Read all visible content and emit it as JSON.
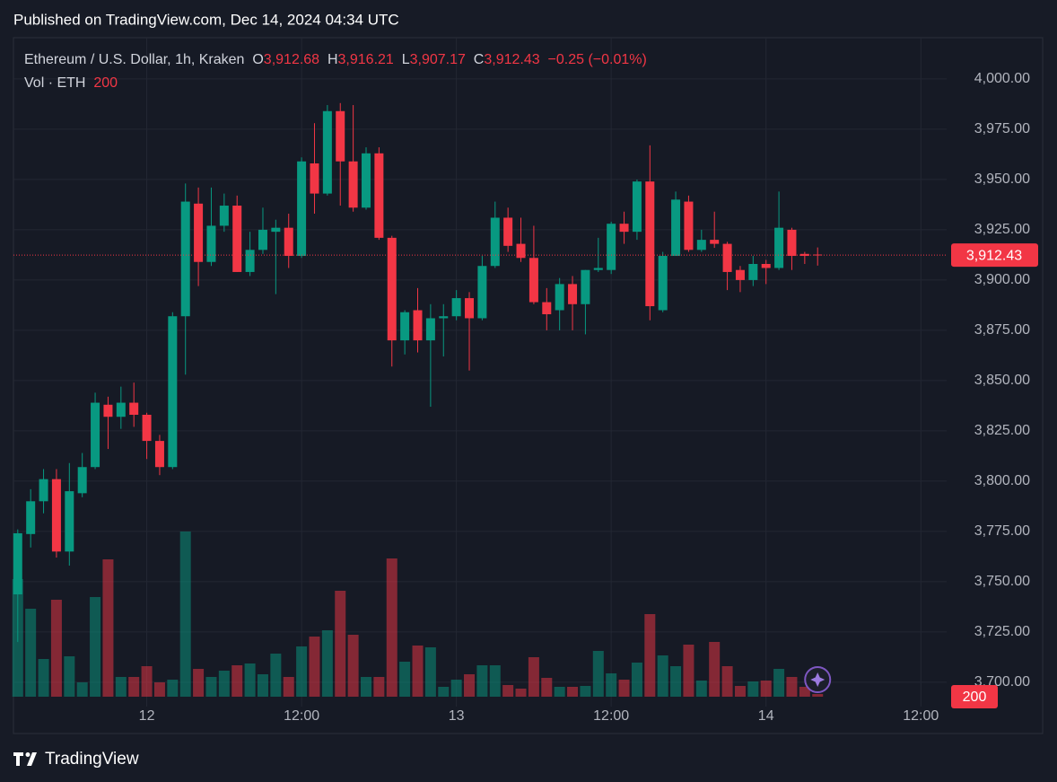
{
  "chart_data": {
    "type": "candlestick",
    "header": "Published on TradingView.com, Dec 14, 2024 04:34 UTC",
    "title": "Ethereum / U.S. Dollar, 1h, Kraken",
    "ohlc_legend": [
      {
        "key": "O",
        "label": "3,912.68"
      },
      {
        "key": "H",
        "label": "3,916.21"
      },
      {
        "key": "L",
        "label": "3,907.17"
      },
      {
        "key": "C",
        "label": "3,912.43"
      }
    ],
    "change_label": "−0.25 (−0.01%)",
    "volume_title": "Vol · ETH",
    "brand": "TradingView",
    "up_color": "#089981",
    "down_color": "#f23645",
    "grid": true,
    "x": [
      "2024-12-11T14:00",
      "2024-12-11T15:00",
      "2024-12-11T16:00",
      "2024-12-11T17:00",
      "2024-12-11T18:00",
      "2024-12-11T19:00",
      "2024-12-11T20:00",
      "2024-12-11T21:00",
      "2024-12-11T22:00",
      "2024-12-11T23:00",
      "2024-12-12T00:00",
      "2024-12-12T01:00",
      "2024-12-12T02:00",
      "2024-12-12T03:00",
      "2024-12-12T04:00",
      "2024-12-12T05:00",
      "2024-12-12T06:00",
      "2024-12-12T07:00",
      "2024-12-12T08:00",
      "2024-12-12T09:00",
      "2024-12-12T10:00",
      "2024-12-12T11:00",
      "2024-12-12T12:00",
      "2024-12-12T13:00",
      "2024-12-12T14:00",
      "2024-12-12T15:00",
      "2024-12-12T16:00",
      "2024-12-12T17:00",
      "2024-12-12T18:00",
      "2024-12-12T19:00",
      "2024-12-12T20:00",
      "2024-12-12T21:00",
      "2024-12-12T22:00",
      "2024-12-12T23:00",
      "2024-12-13T00:00",
      "2024-12-13T01:00",
      "2024-12-13T02:00",
      "2024-12-13T03:00",
      "2024-12-13T04:00",
      "2024-12-13T05:00",
      "2024-12-13T06:00",
      "2024-12-13T07:00",
      "2024-12-13T08:00",
      "2024-12-13T09:00",
      "2024-12-13T10:00",
      "2024-12-13T11:00",
      "2024-12-13T12:00",
      "2024-12-13T13:00",
      "2024-12-13T14:00",
      "2024-12-13T15:00",
      "2024-12-13T16:00",
      "2024-12-13T17:00",
      "2024-12-13T18:00",
      "2024-12-13T19:00",
      "2024-12-13T20:00",
      "2024-12-13T21:00",
      "2024-12-13T22:00",
      "2024-12-13T23:00",
      "2024-12-14T00:00",
      "2024-12-14T01:00",
      "2024-12-14T02:00",
      "2024-12-14T03:00",
      "2024-12-14T04:00"
    ],
    "open": [
      3743.7,
      3773.7,
      3790,
      3801,
      3765,
      3794,
      3807,
      3838,
      3832,
      3839,
      3833,
      3820,
      3807,
      3882,
      3938,
      3909,
      3927,
      3937,
      3904,
      3915,
      3924,
      3926,
      3912,
      3958,
      3943,
      3984,
      3959,
      3936,
      3963,
      3921,
      3870,
      3885,
      3870,
      3881,
      3882,
      3891,
      3881,
      3907,
      3931,
      3918,
      3911,
      3889,
      3885,
      3898,
      3888,
      3905,
      3905,
      3928,
      3924,
      3949,
      3885,
      3912,
      3939,
      3915,
      3920,
      3918,
      3905,
      3900,
      3908,
      3906,
      3925,
      3913,
      3912.68
    ],
    "high": [
      3776,
      3796,
      3806,
      3806,
      3809,
      3814,
      3844,
      3842,
      3847,
      3849,
      3834,
      3823,
      3884,
      3948,
      3946,
      3946,
      3943,
      3942,
      3924,
      3936,
      3930,
      3933,
      3961,
      3978,
      3987,
      3988,
      3987,
      3966,
      3966,
      3922,
      3885,
      3896,
      3888,
      3888,
      3895,
      3894,
      3912,
      3939,
      3936,
      3931,
      3927,
      3896,
      3901,
      3902,
      3905,
      3921,
      3929,
      3934,
      3950,
      3967,
      3914,
      3944,
      3942,
      3925,
      3934,
      3919,
      3907,
      3912,
      3910,
      3944,
      3926,
      3914,
      3916.21
    ],
    "low": [
      3720,
      3767,
      3784,
      3762,
      3758,
      3792,
      3806,
      3816,
      3826,
      3827,
      3811,
      3803,
      3806,
      3853,
      3897,
      3907,
      3924,
      3904,
      3902,
      3913,
      3893,
      3906,
      3911,
      3933,
      3942,
      3937,
      3934,
      3935,
      3920,
      3857,
      3863,
      3864,
      3837,
      3862,
      3880,
      3855,
      3880,
      3906,
      3914,
      3909,
      3888,
      3875,
      3875,
      3875,
      3873,
      3904,
      3903,
      3918,
      3920,
      3880,
      3884,
      3912,
      3914,
      3914,
      3916,
      3895,
      3894,
      3897,
      3898,
      3905,
      3905,
      3908,
      3907.17
    ],
    "close": [
      3774.1,
      3790,
      3801,
      3765,
      3795,
      3807,
      3839,
      3832,
      3839,
      3833,
      3820,
      3807,
      3882,
      3939,
      3909,
      3927,
      3937,
      3904,
      3915,
      3925,
      3926,
      3912,
      3959,
      3943,
      3984,
      3959,
      3936,
      3963,
      3921,
      3870,
      3884,
      3870,
      3881,
      3882,
      3891,
      3881,
      3907,
      3931,
      3917,
      3911,
      3889,
      3883,
      3898,
      3888,
      3905,
      3906,
      3928,
      3924,
      3949,
      3887,
      3912,
      3940,
      3915,
      3920,
      3918,
      3904,
      3900,
      3908,
      3906,
      3926,
      3912,
      3912,
      3912.43
    ],
    "volume": [
      8777,
      6566,
      2814,
      7236,
      3015,
      1072,
      7437,
      10251,
      1474,
      1474,
      2278,
      1072,
      1273,
      12328,
      2077,
      1474,
      1943,
      2345,
      2479,
      1675,
      3216,
      1474,
      3752,
      4489,
      4958,
      7906,
      4623,
      1474,
      1474,
      10318,
      2613,
      3819,
      3685,
      737,
      1273,
      1675,
      2345,
      2345,
      871,
      603,
      2948,
      1407,
      737,
      737,
      804,
      3417,
      1742,
      1273,
      2546,
      6164,
      3082,
      2278,
      3886,
      1206,
      4087,
      2278,
      804,
      1139,
      1206,
      2077,
      1474,
      737,
      200
    ],
    "xlim": [
      "2024-12-11T13:40",
      "2024-12-14T14:00"
    ],
    "xticks": [
      {
        "value": "2024-12-12T00:00",
        "label": "12"
      },
      {
        "value": "2024-12-12T12:00",
        "label": "12:00"
      },
      {
        "value": "2024-12-13T00:00",
        "label": "13"
      },
      {
        "value": "2024-12-13T12:00",
        "label": "12:00"
      },
      {
        "value": "2024-12-14T00:00",
        "label": "14"
      },
      {
        "value": "2024-12-14T12:00",
        "label": "12:00"
      }
    ],
    "ylim": [
      3687.9,
      4020.5
    ],
    "yticks": [
      {
        "value": 3700,
        "label": "3,700.00"
      },
      {
        "value": 3725,
        "label": "3,725.00"
      },
      {
        "value": 3750,
        "label": "3,750.00"
      },
      {
        "value": 3775,
        "label": "3,775.00"
      },
      {
        "value": 3800,
        "label": "3,800.00"
      },
      {
        "value": 3825,
        "label": "3,825.00"
      },
      {
        "value": 3850,
        "label": "3,850.00"
      },
      {
        "value": 3875,
        "label": "3,875.00"
      },
      {
        "value": 3900,
        "label": "3,900.00"
      },
      {
        "value": 3925,
        "label": "3,925.00"
      },
      {
        "value": 3950,
        "label": "3,950.00"
      },
      {
        "value": 3975,
        "label": "3,975.00"
      },
      {
        "value": 4000,
        "label": "4,000.00"
      }
    ]
  }
}
